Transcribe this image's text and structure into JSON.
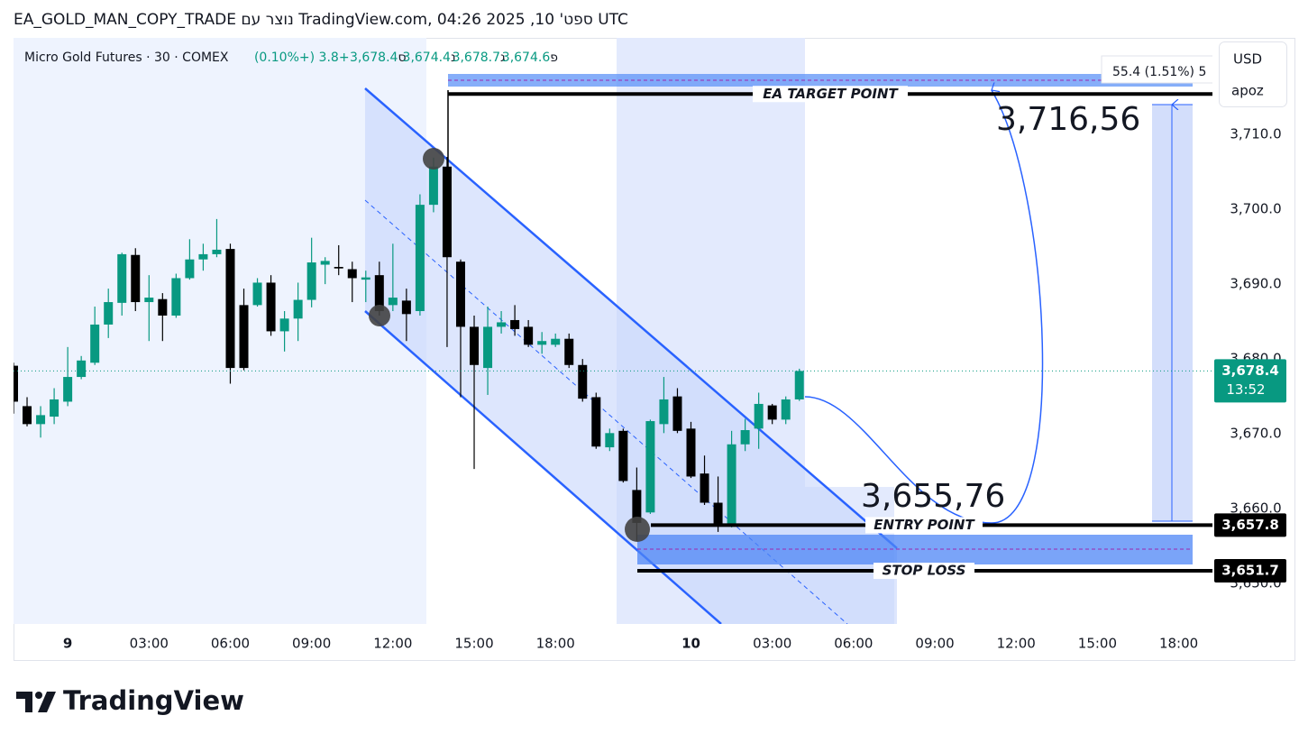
{
  "page_title": "EA_GOLD_MAN_COPY_TRADE נוצר עם TradingView.com, ספט' 10, 2025 04:26 UTC",
  "footer": {
    "brand": "TradingView"
  },
  "chart_data": {
    "type": "candlestick",
    "symbol": "Micro Gold Futures · 30 · COMEX",
    "legend_items": [
      {
        "key": "פ",
        "value": "3,674.6"
      },
      {
        "key": "ג",
        "value": "3,678.7"
      },
      {
        "key": "נ",
        "value": "3,674.4"
      },
      {
        "key": "ס",
        "value": "3,678.4"
      }
    ],
    "change": "+3.8 (+0.10%)",
    "currency": "USD",
    "scale_user": "apoz",
    "up_color": "#089981",
    "down_color": "#000000",
    "grid": false,
    "categories": [
      null,
      null,
      null,
      null,
      "9",
      null,
      null,
      null,
      null,
      null,
      "03:00",
      null,
      null,
      null,
      null,
      null,
      "06:00",
      null,
      null,
      null,
      null,
      null,
      "09:00",
      null,
      null,
      null,
      null,
      null,
      "12:00",
      null,
      null,
      null,
      null,
      null,
      "15:00",
      null,
      null,
      null,
      null,
      null,
      "18:00",
      null,
      null,
      null,
      null,
      null,
      null,
      null,
      null,
      null,
      "10",
      null,
      null,
      null,
      null,
      null,
      "03:00",
      null,
      null,
      null,
      null,
      null,
      "06:00",
      null,
      null,
      null,
      null,
      null,
      "09:00",
      null,
      null,
      null,
      null,
      null,
      "12:00",
      null,
      null,
      null,
      null,
      null,
      "15:00",
      null,
      null,
      null,
      null,
      null,
      "18:00",
      null,
      null
    ],
    "open": [
      3679.1,
      3673.7,
      3671.3,
      3672.3,
      3674.3,
      3677.6,
      3679.5,
      3684.6,
      3687.5,
      3693.9,
      3687.6,
      3688.0,
      3685.8,
      3690.8,
      3693.3,
      3694.0,
      3694.7,
      3687.2,
      3687.2,
      3690.2,
      3683.7,
      3685.4,
      3687.9,
      3692.6,
      3692.3,
      3692.0,
      3690.6,
      3691.2,
      3687.2,
      3687.8,
      3686.4,
      3700.6,
      3705.7,
      3693.0,
      3684.3,
      3678.8,
      3684.3,
      3685.2,
      3684.3,
      3681.9,
      3681.9,
      3682.7,
      3679.2,
      3674.9,
      3668.2,
      3670.4,
      3662.5,
      3659.5,
      3671.3,
      3675.0,
      3670.7,
      3664.7,
      3660.8,
      3657.8,
      3668.6,
      3670.7,
      3673.8,
      3671.9,
      3674.6,
      null,
      null,
      null,
      null,
      null,
      null,
      null,
      null,
      null,
      null,
      null,
      null,
      null,
      null,
      null,
      null,
      null,
      null,
      null,
      null,
      null,
      null,
      null,
      null,
      null,
      null,
      null,
      null,
      null,
      null
    ],
    "high": [
      3679.5,
      3674.9,
      3673.7,
      3676.1,
      3681.6,
      3680.4,
      3687.0,
      3689.4,
      3694.2,
      3694.8,
      3691.2,
      3688.8,
      3691.4,
      3696.0,
      3695.4,
      3698.7,
      3695.4,
      3689.4,
      3690.8,
      3691.2,
      3686.4,
      3690.2,
      3696.2,
      3693.6,
      3695.2,
      3693.0,
      3691.8,
      3693.0,
      3695.4,
      3689.4,
      3702.0,
      3706.9,
      3707.0,
      3693.3,
      3685.8,
      3687.0,
      3686.4,
      3687.2,
      3685.2,
      3683.6,
      3683.4,
      3683.4,
      3680.0,
      3675.5,
      3670.7,
      3670.7,
      3665.5,
      3671.9,
      3677.6,
      3676.1,
      3671.6,
      3667.1,
      3664.3,
      3670.4,
      3672.0,
      3675.5,
      3674.0,
      3675.0,
      3678.7,
      null,
      null,
      null,
      null,
      null,
      null,
      null,
      null,
      null,
      null,
      null,
      null,
      null,
      null,
      null,
      null,
      null,
      null,
      null,
      null,
      null,
      null,
      null,
      null,
      null,
      null,
      null,
      null,
      null,
      null
    ],
    "low": [
      3672.7,
      3671.0,
      3669.5,
      3671.3,
      3673.7,
      3677.3,
      3679.2,
      3682.8,
      3685.8,
      3686.4,
      3682.4,
      3682.4,
      3685.5,
      3690.6,
      3691.8,
      3693.6,
      3676.7,
      3678.5,
      3687.0,
      3683.1,
      3681.0,
      3682.4,
      3686.9,
      3690.0,
      3691.2,
      3687.6,
      3687.6,
      3685.8,
      3686.4,
      3682.4,
      3685.8,
      3699.6,
      3681.6,
      3674.9,
      3665.3,
      3675.2,
      3683.4,
      3683.1,
      3681.6,
      3680.7,
      3681.6,
      3678.8,
      3674.3,
      3668.0,
      3667.7,
      3663.5,
      3655.7,
      3659.3,
      3670.1,
      3670.1,
      3664.1,
      3660.5,
      3656.9,
      3657.5,
      3667.7,
      3668.0,
      3671.3,
      3671.3,
      3674.4,
      null,
      null,
      null,
      null,
      null,
      null,
      null,
      null,
      null,
      null,
      null,
      null,
      null,
      null,
      null,
      null,
      null,
      null,
      null,
      null,
      null,
      null,
      null,
      null,
      null,
      null,
      null,
      null,
      null,
      null
    ],
    "close": [
      3674.3,
      3671.3,
      3672.5,
      3674.6,
      3677.6,
      3679.8,
      3684.6,
      3687.6,
      3694.0,
      3687.6,
      3688.2,
      3685.8,
      3690.8,
      3693.3,
      3694.0,
      3694.6,
      3678.8,
      3678.8,
      3690.2,
      3683.7,
      3685.4,
      3687.9,
      3692.9,
      3693.1,
      3692.1,
      3690.8,
      3690.9,
      3686.4,
      3688.2,
      3686.0,
      3700.6,
      3705.7,
      3693.6,
      3684.3,
      3679.2,
      3684.3,
      3684.9,
      3684.0,
      3681.9,
      3682.4,
      3682.7,
      3679.2,
      3674.7,
      3668.3,
      3670.1,
      3663.7,
      3658.1,
      3671.7,
      3674.6,
      3670.4,
      3664.3,
      3660.8,
      3657.8,
      3668.6,
      3670.5,
      3674.0,
      3671.9,
      3674.6,
      3678.4,
      null,
      null,
      null,
      null,
      null,
      null,
      null,
      null,
      null,
      null,
      null,
      null,
      null,
      null,
      null,
      null,
      null,
      null,
      null,
      null,
      null,
      null,
      null,
      null,
      null,
      null,
      null,
      null,
      null,
      null
    ],
    "ylim": [
      3644.6,
      3722.9
    ],
    "yticks": [
      {
        "value": 3650,
        "label": "3,650.0"
      },
      {
        "value": 3660,
        "label": "3,660.0"
      },
      {
        "value": 3670,
        "label": "3,670.0"
      },
      {
        "value": 3680,
        "label": "3,680.0"
      },
      {
        "value": 3690,
        "label": "3,690.0"
      },
      {
        "value": 3700,
        "label": "3,700.0"
      },
      {
        "value": 3710,
        "label": "3,710.0"
      }
    ],
    "last_price": {
      "value": 3678.4,
      "value_label": "3,678.4",
      "countdown": "13:52"
    },
    "annotations": {
      "target": {
        "text": "EA TARGET POINT",
        "value": 3715.4
      },
      "target_price": "3,716,56",
      "entry": {
        "text": "ENTRY POINT",
        "value": 3657.8,
        "value_label": "3,657.8"
      },
      "stop": {
        "text": "STOP LOSS",
        "value": 3651.7,
        "value_label": "3,651.7"
      },
      "entry_price": "3,655,76",
      "measure": "55.4 (1.51%) 5"
    }
  }
}
